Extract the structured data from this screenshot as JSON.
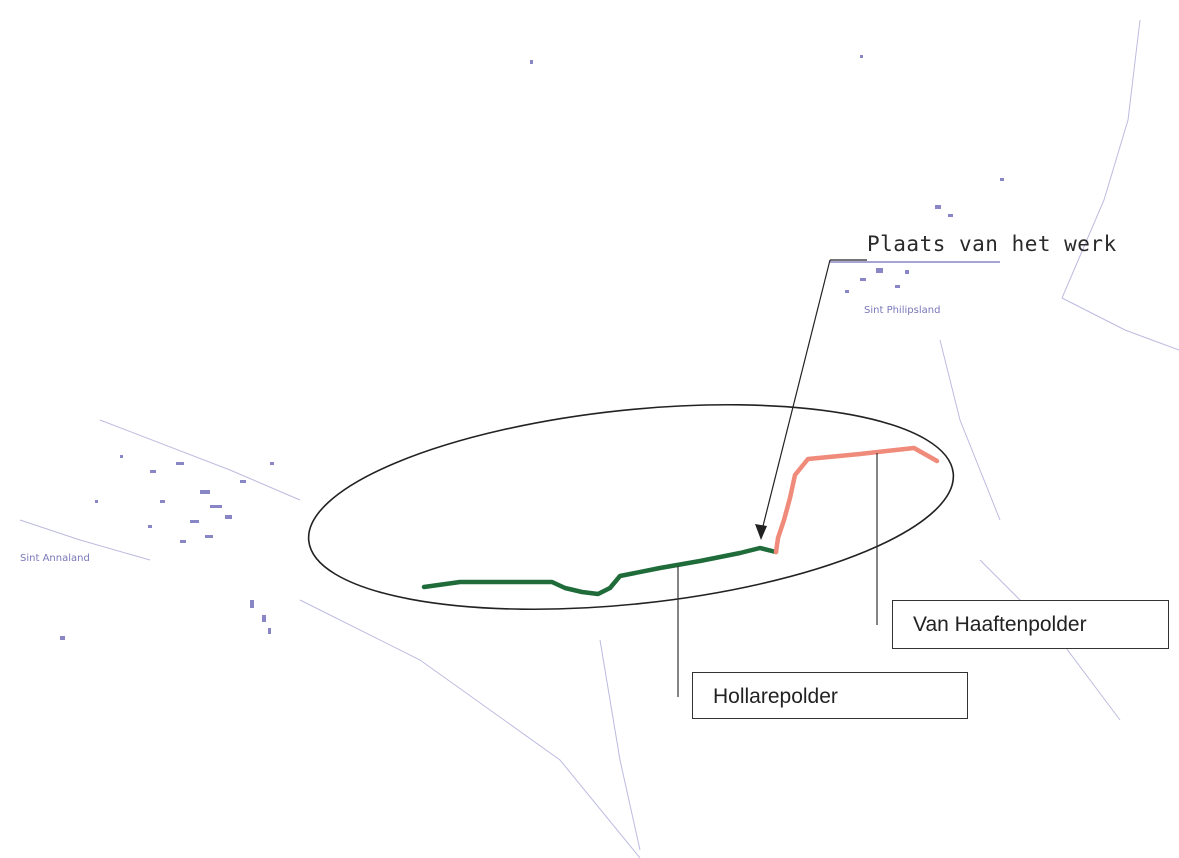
{
  "map": {
    "labels": {
      "work_site": "Plaats van het werk",
      "van_haaften": "Van Haaftenpolder",
      "hollare": "Hollarepolder"
    },
    "towns": {
      "sint_philipsland": "Sint Philipsland",
      "sint_annaland": "Sint Annaland"
    },
    "colors": {
      "hollarepolder_line": "#1f6b3a",
      "van_haaftenpolder_line": "#f08a7a",
      "base_map": "#8886c4",
      "ellipse": "#222222"
    },
    "icons": [
      "arrow-head-icon"
    ]
  }
}
